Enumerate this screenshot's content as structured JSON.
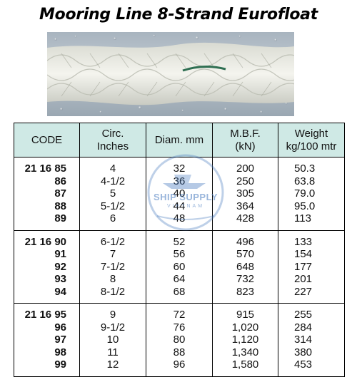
{
  "title": "Mooring Line 8-Strand Eurofloat",
  "watermark": {
    "name": "SHIP SUPPLY",
    "sub": "VIETNAM"
  },
  "table": {
    "headers": {
      "code": "CODE",
      "circ_1": "Circ.",
      "circ_2": "Inches",
      "diam": "Diam. mm",
      "mbf_1": "M.B.F.",
      "mbf_2": "(kN)",
      "weight_1": "Weight",
      "weight_2": "kg/100 mtr"
    },
    "groups": [
      {
        "rows": [
          {
            "code": "21 16 85",
            "circ": "4",
            "diam": "32",
            "mbf": "200",
            "weight": "50.3"
          },
          {
            "code": "86",
            "circ": "4-1/2",
            "diam": "36",
            "mbf": "250",
            "weight": "63.8"
          },
          {
            "code": "87",
            "circ": "5",
            "diam": "40",
            "mbf": "305",
            "weight": "79.0"
          },
          {
            "code": "88",
            "circ": "5-1/2",
            "diam": "44",
            "mbf": "364",
            "weight": "95.0"
          },
          {
            "code": "89",
            "circ": "6",
            "diam": "48",
            "mbf": "428",
            "weight": "113"
          }
        ]
      },
      {
        "rows": [
          {
            "code": "21 16 90",
            "circ": "6-1/2",
            "diam": "52",
            "mbf": "496",
            "weight": "133"
          },
          {
            "code": "91",
            "circ": "7",
            "diam": "56",
            "mbf": "570",
            "weight": "154"
          },
          {
            "code": "92",
            "circ": "7-1/2",
            "diam": "60",
            "mbf": "648",
            "weight": "177"
          },
          {
            "code": "93",
            "circ": "8",
            "diam": "64",
            "mbf": "732",
            "weight": "201"
          },
          {
            "code": "94",
            "circ": "8-1/2",
            "diam": "68",
            "mbf": "823",
            "weight": "227"
          }
        ]
      },
      {
        "rows": [
          {
            "code": "21 16 95",
            "circ": "9",
            "diam": "72",
            "mbf": "915",
            "weight": "255"
          },
          {
            "code": "96",
            "circ": "9-1/2",
            "diam": "76",
            "mbf": "1,020",
            "weight": "284"
          },
          {
            "code": "97",
            "circ": "10",
            "diam": "80",
            "mbf": "1,120",
            "weight": "314"
          },
          {
            "code": "98",
            "circ": "11",
            "diam": "88",
            "mbf": "1,340",
            "weight": "380"
          },
          {
            "code": "99",
            "circ": "12",
            "diam": "96",
            "mbf": "1,580",
            "weight": "453"
          }
        ]
      }
    ]
  },
  "colors": {
    "header_bg": "#cfe9e5",
    "watermark": "#4678be"
  }
}
